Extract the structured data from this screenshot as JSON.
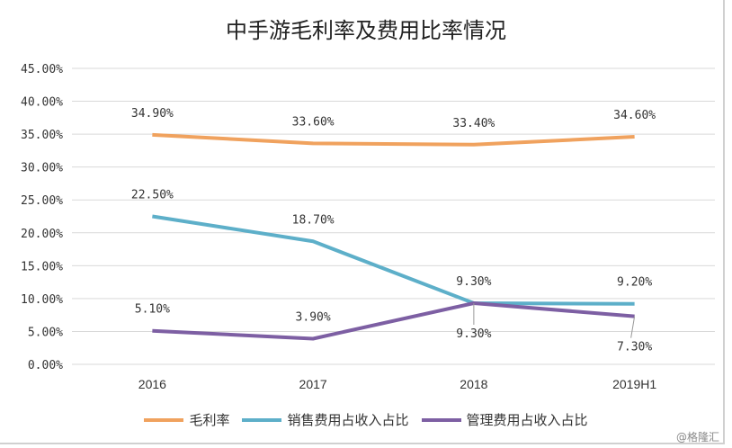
{
  "chart_data": {
    "type": "line",
    "title": "中手游毛利率及费用比率情况",
    "categories": [
      "2016",
      "2017",
      "2018",
      "2019H1"
    ],
    "yticks": [
      "0.00%",
      "5.00%",
      "10.00%",
      "15.00%",
      "20.00%",
      "25.00%",
      "30.00%",
      "35.00%",
      "40.00%",
      "45.00%"
    ],
    "ylim": [
      0,
      45
    ],
    "grid": true,
    "legend_position": "bottom",
    "series": [
      {
        "name": "毛利率",
        "color": "#F0A25E",
        "values": [
          34.9,
          33.6,
          33.4,
          34.6
        ],
        "labels": [
          "34.90%",
          "33.60%",
          "33.40%",
          "34.60%"
        ]
      },
      {
        "name": "销售费用占收入占比",
        "color": "#5DAFC9",
        "values": [
          22.5,
          18.7,
          9.3,
          9.2
        ],
        "labels": [
          "22.50%",
          "18.70%",
          "9.30%",
          "9.20%"
        ]
      },
      {
        "name": "管理费用占收入占比",
        "color": "#7D5FA3",
        "values": [
          5.1,
          3.9,
          9.3,
          7.3
        ],
        "labels": [
          "5.10%",
          "3.90%",
          "9.30%",
          "7.30%"
        ]
      }
    ]
  },
  "watermark": "@格隆汇"
}
